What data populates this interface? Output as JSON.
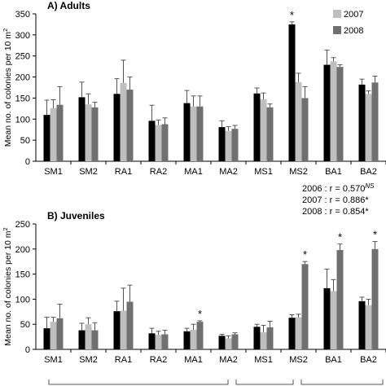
{
  "chart_data": [
    {
      "type": "bar",
      "title": "A) Adults",
      "ylabel": "Mean no. of colonies per 10 m2",
      "ylabel_sup": "2",
      "ylim": [
        0,
        350
      ],
      "yticks": [
        0,
        50,
        100,
        150,
        200,
        250,
        300,
        350
      ],
      "grid": false,
      "legend_position": "top-right",
      "categories": [
        "SM1",
        "SM2",
        "RA1",
        "RA2",
        "MA1",
        "MA2",
        "MS1",
        "MS2",
        "BA1",
        "BA2"
      ],
      "series": [
        {
          "name": "2006",
          "color": "#000000",
          "values": [
            110,
            152,
            160,
            96,
            138,
            81,
            161,
            325,
            229,
            182
          ],
          "errors": [
            35,
            36,
            36,
            37,
            30,
            15,
            13,
            6,
            35,
            13
          ]
        },
        {
          "name": "2007",
          "color": "#bfbfbf",
          "values": [
            126,
            135,
            186,
            86,
            130,
            72,
            147,
            188,
            237,
            160
          ],
          "errors": [
            20,
            25,
            54,
            12,
            25,
            10,
            15,
            21,
            9,
            7
          ]
        },
        {
          "name": "2008",
          "color": "#707070",
          "values": [
            134,
            128,
            170,
            88,
            130,
            77,
            128,
            150,
            224,
            187
          ],
          "errors": [
            43,
            12,
            30,
            15,
            25,
            8,
            8,
            27,
            5,
            15
          ]
        }
      ],
      "legend_entries": [
        "2007",
        "2008"
      ],
      "annotations": [
        {
          "category": "MS2",
          "series": "2006",
          "text": "*"
        }
      ]
    },
    {
      "type": "bar",
      "title": "B) Juveniles",
      "ylabel": "Mean no. of colonies per 10 m2",
      "ylabel_sup": "2",
      "ylim": [
        0,
        250
      ],
      "yticks": [
        0,
        50,
        100,
        150,
        200,
        250
      ],
      "grid": false,
      "categories": [
        "SM1",
        "SM2",
        "RA1",
        "RA2",
        "MA1",
        "MA2",
        "MS1",
        "MS2",
        "BA1",
        "BA2"
      ],
      "series": [
        {
          "name": "2006",
          "color": "#000000",
          "values": [
            42,
            38,
            76,
            32,
            36,
            27,
            45,
            63,
            122,
            96
          ],
          "errors": [
            22,
            14,
            20,
            10,
            6,
            3,
            5,
            6,
            38,
            8
          ]
        },
        {
          "name": "2007",
          "color": "#bfbfbf",
          "values": [
            55,
            50,
            77,
            29,
            39,
            22,
            34,
            64,
            116,
            88
          ],
          "errors": [
            9,
            13,
            45,
            7,
            11,
            5,
            14,
            6,
            23,
            12
          ]
        },
        {
          "name": "2008",
          "color": "#707070",
          "values": [
            62,
            38,
            95,
            30,
            55,
            30,
            44,
            170,
            198,
            200
          ],
          "errors": [
            28,
            15,
            33,
            8,
            2,
            3,
            12,
            5,
            12,
            15
          ]
        }
      ],
      "annotations": [
        {
          "category": "MA1",
          "series": "2008",
          "text": "*"
        },
        {
          "category": "MS2",
          "series": "2008",
          "text": "*"
        },
        {
          "category": "BA1",
          "series": "2008",
          "text": "*"
        },
        {
          "category": "BA2",
          "series": "2008",
          "text": "*"
        }
      ],
      "correlations": [
        {
          "year": "2006",
          "text": "2006 : r = 0.570",
          "sup": "NS"
        },
        {
          "year": "2007",
          "text": "2007 : r = 0.886*"
        },
        {
          "year": "2008",
          "text": "2008 : r = 0.854*"
        }
      ]
    }
  ],
  "colors": {
    "2006": "#000000",
    "2007": "#bfbfbf",
    "2008": "#707070",
    "axis": "#000000"
  }
}
